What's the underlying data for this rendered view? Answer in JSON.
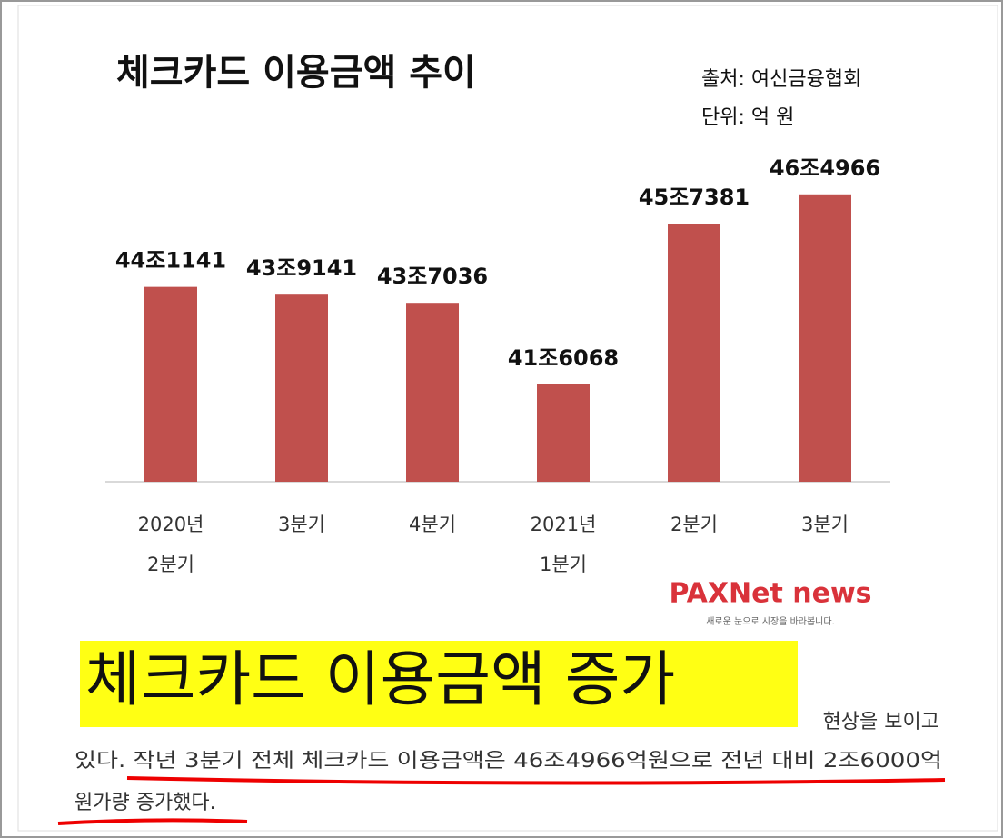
{
  "chart_data": {
    "type": "bar",
    "title": "체크카드 이용금액 추이",
    "source": "출처: 여신금융협회",
    "unit": "단위: 억 원",
    "categories": [
      "2020년\n2분기",
      "3분기",
      "4분기",
      "2021년\n1분기",
      "2분기",
      "3분기"
    ],
    "values": [
      441141,
      439141,
      437036,
      416068,
      457381,
      464966
    ],
    "value_labels": [
      "44조1141",
      "43조9141",
      "43조7036",
      "41조6068",
      "45조7381",
      "46조4966"
    ],
    "color": "#c0504d",
    "ylim": [
      391000,
      471000
    ]
  },
  "logo": {
    "name": "PAXNet news",
    "tagline": "새로운 눈으로 시장을 바라봅니다."
  },
  "article": {
    "headline": "체크카드 이용금액 증가",
    "lines": [
      "현상을 보이고",
      "있다. 작년 3분기 전체 체크카드 이용금액은 46조4966억원으로 전년 대비 2조6000억",
      "원가량 증가했다."
    ]
  }
}
